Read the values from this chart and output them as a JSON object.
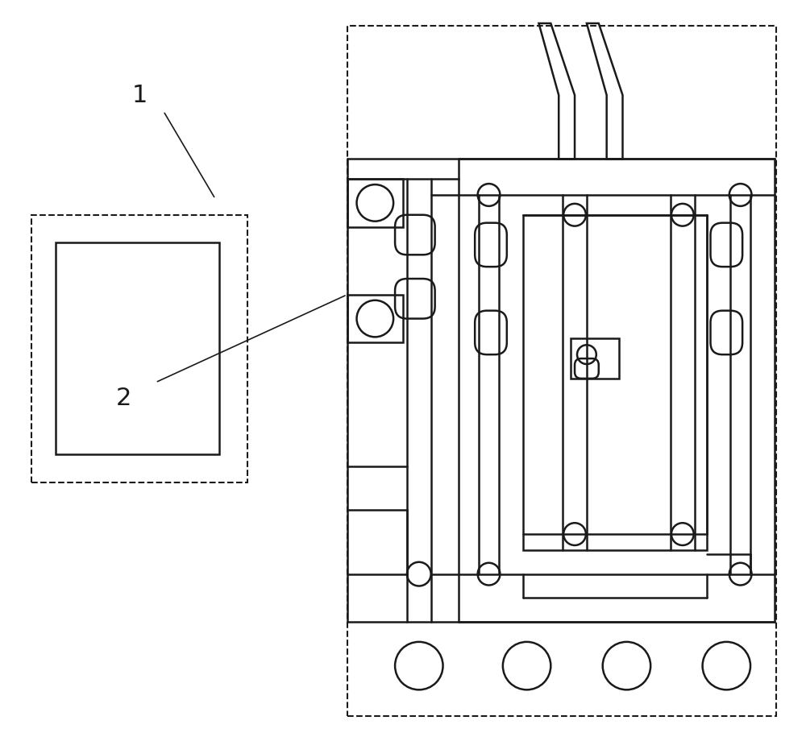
{
  "bg_color": "#ffffff",
  "lc": "#1a1a1a",
  "lw": 1.8,
  "dlw": 1.5,
  "fig_width": 10.0,
  "fig_height": 9.15,
  "label1": "1",
  "label2": "2"
}
